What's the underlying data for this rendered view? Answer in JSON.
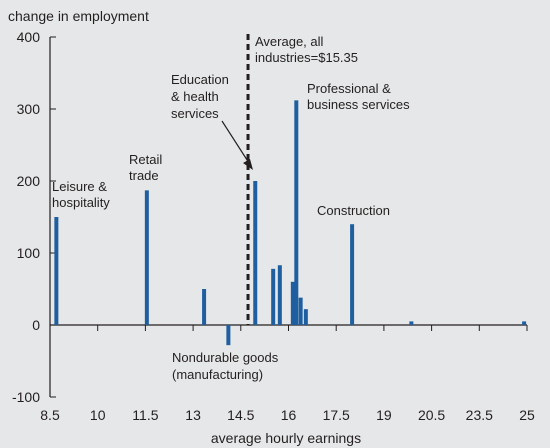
{
  "chart_data": {
    "type": "bar",
    "ylabel": "change in employment",
    "xlabel": "average hourly earnings",
    "xlim": [
      8.5,
      25
    ],
    "ylim": [
      -100,
      400
    ],
    "x_ticks": [
      "8.5",
      "10",
      "11.5",
      "13",
      "14.5",
      "16",
      "17.5",
      "19",
      "20.5",
      "23.5",
      "25"
    ],
    "y_ticks": [
      "400",
      "300",
      "200",
      "100",
      "0",
      "-100"
    ],
    "bar_color": "#1f5fa0",
    "values": [
      {
        "x": 8.72,
        "y": 150
      },
      {
        "x": 11.85,
        "y": 187
      },
      {
        "x": 13.83,
        "y": 50
      },
      {
        "x": 14.67,
        "y": -28
      },
      {
        "x": 15.6,
        "y": 200
      },
      {
        "x": 16.22,
        "y": 78
      },
      {
        "x": 16.45,
        "y": 83
      },
      {
        "x": 16.9,
        "y": 60
      },
      {
        "x": 17.02,
        "y": 312
      },
      {
        "x": 17.17,
        "y": 38
      },
      {
        "x": 17.35,
        "y": 22
      },
      {
        "x": 18.95,
        "y": 140
      },
      {
        "x": 21.0,
        "y": 5
      },
      {
        "x": 24.9,
        "y": 5
      }
    ],
    "average": {
      "x": 15.35,
      "label_line1": "Average, all",
      "label_line2": "industries=$15.35"
    },
    "annotations": [
      {
        "lines": [
          "Leisure &",
          "hospitality"
        ]
      },
      {
        "lines": [
          "Retail",
          "trade"
        ]
      },
      {
        "lines": [
          "Education",
          "& health",
          "services"
        ]
      },
      {
        "lines": [
          "Professional &",
          "business services"
        ]
      },
      {
        "lines": [
          "Construction"
        ]
      },
      {
        "lines": [
          "Nondurable goods",
          "(manufacturing)"
        ]
      }
    ]
  }
}
